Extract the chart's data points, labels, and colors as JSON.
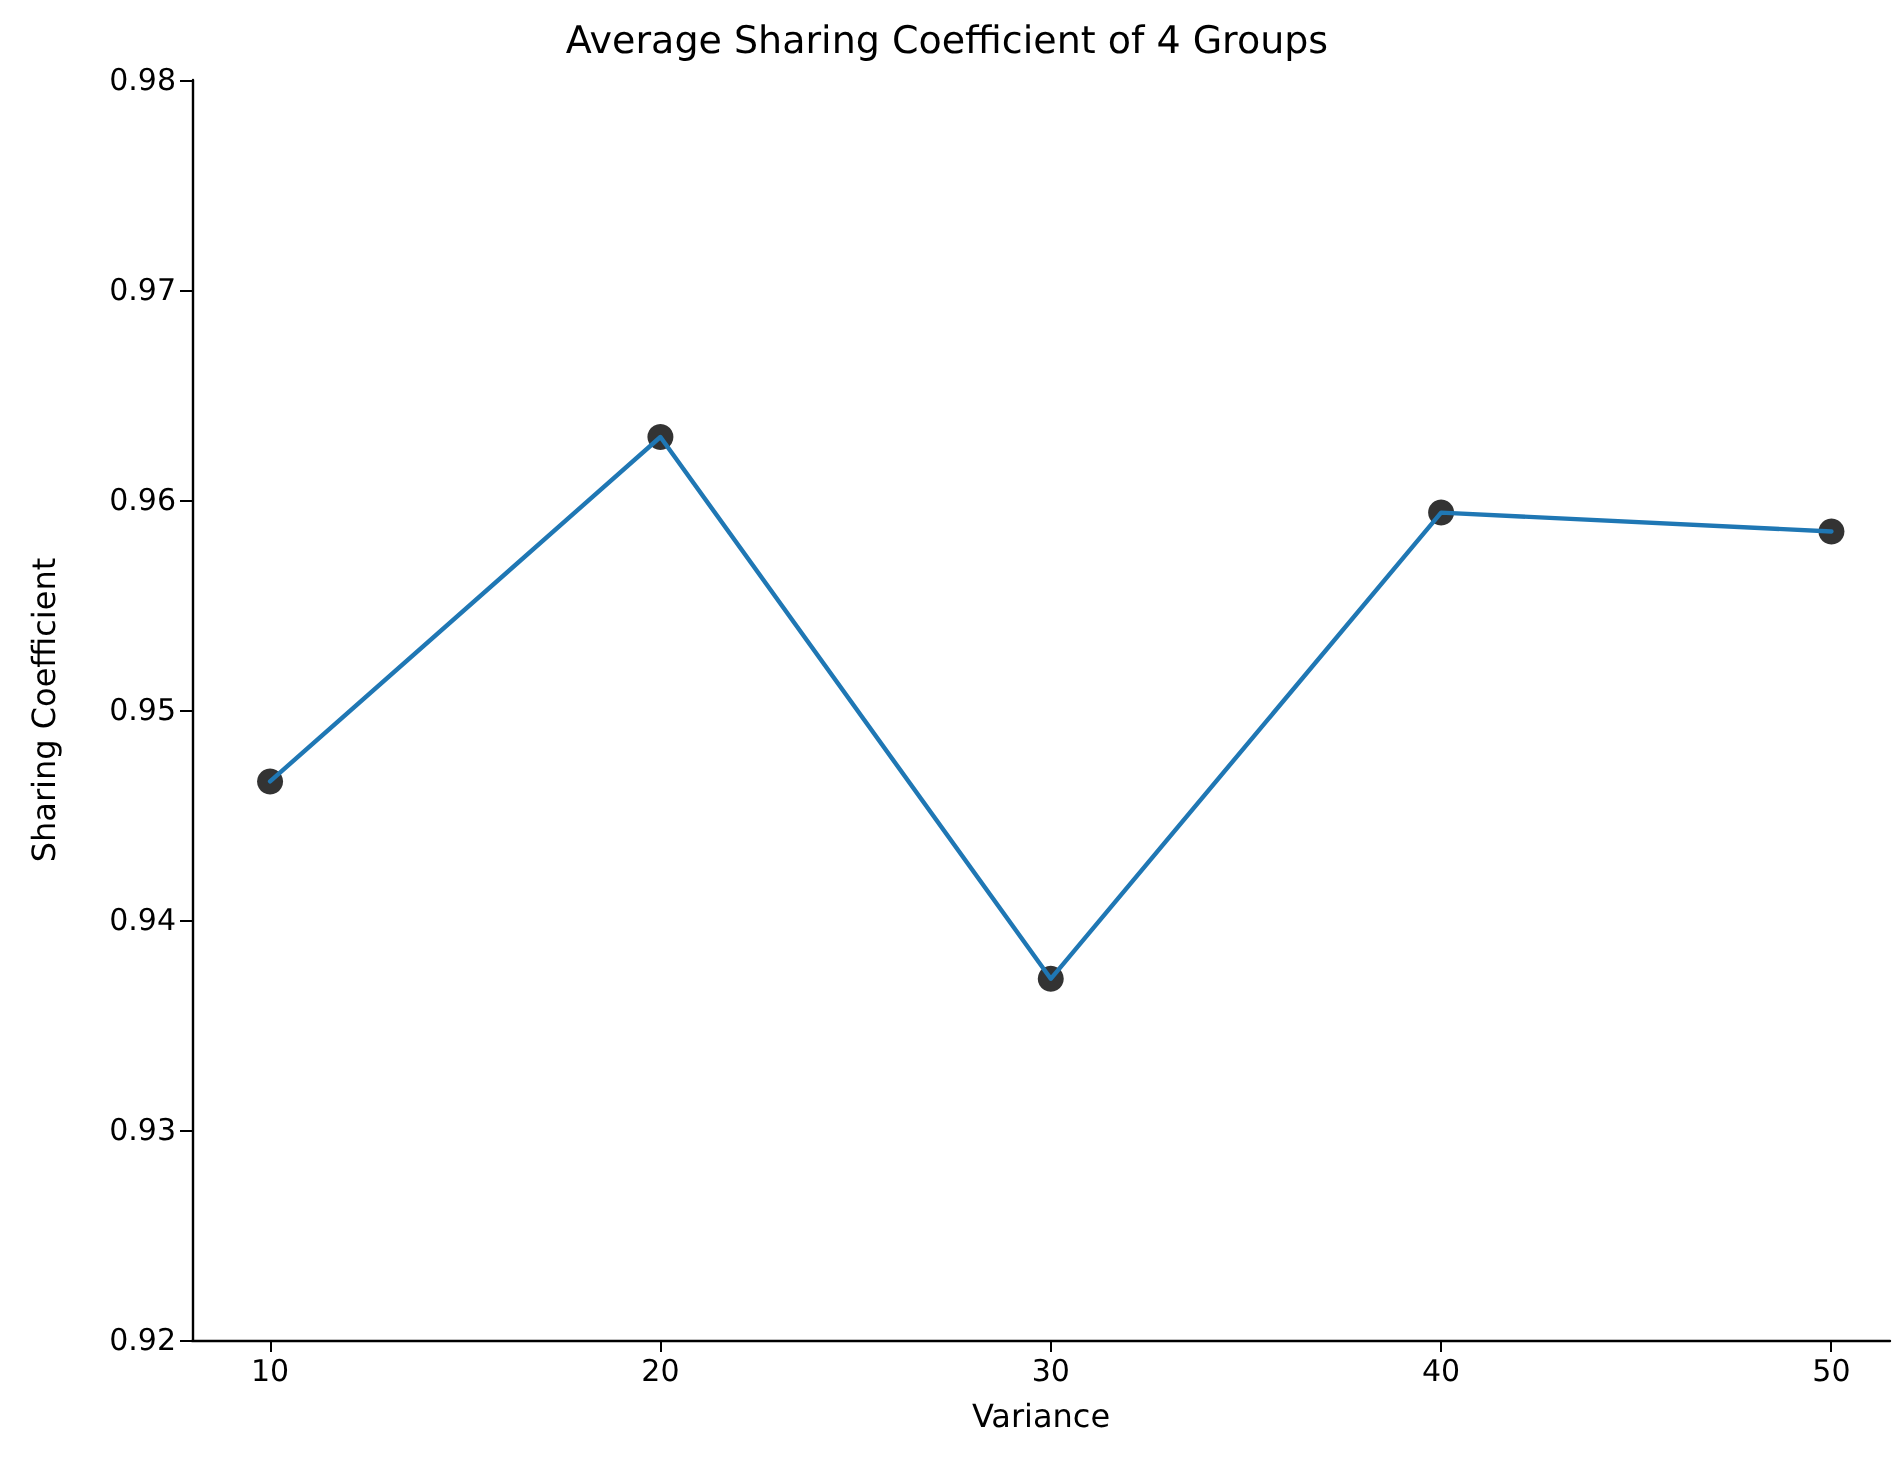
{
  "chart_data": {
    "type": "line",
    "title": "Average Sharing Coefficient of 4 Groups",
    "xlabel": "Variance",
    "ylabel": "Sharing Coefficient",
    "x": [
      10,
      20,
      30,
      40,
      50
    ],
    "series": [
      {
        "type": "scatter",
        "color": "#000000",
        "marker": "circle",
        "values": [
          0.9466,
          0.963,
          0.9372,
          0.9594,
          0.9585
        ]
      },
      {
        "color": "#1f77b4",
        "marker": "none",
        "line_style": "solid",
        "values": [
          0.9466,
          0.963,
          0.9372,
          0.9594,
          0.9585
        ]
      }
    ],
    "xlim": [
      8,
      51.5
    ],
    "xticks": [
      10,
      20,
      30,
      40,
      50
    ],
    "ylim": [
      0.92,
      0.98
    ],
    "yticks": [
      0.92,
      0.93,
      0.94,
      0.95,
      0.96,
      0.97,
      0.98
    ],
    "grid": false
  }
}
